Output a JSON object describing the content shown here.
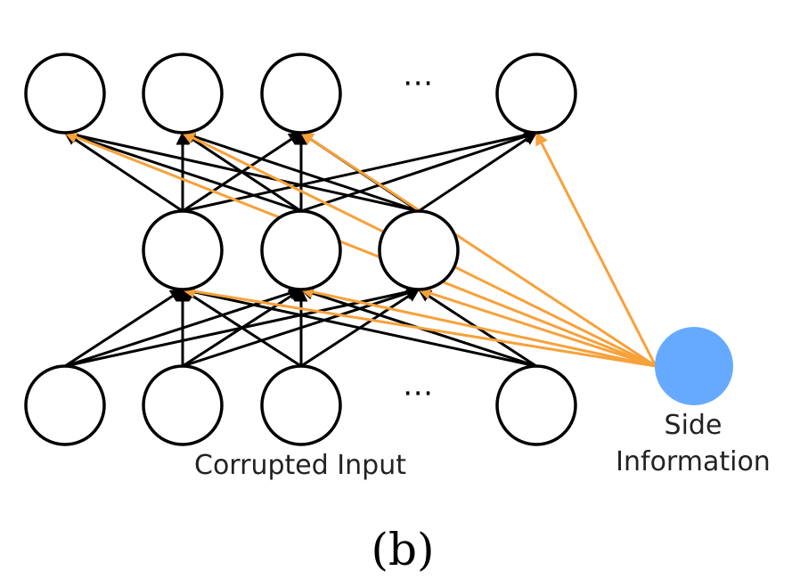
{
  "diagram": {
    "input_label": "Corrupted Input",
    "side_label_line1": "Side",
    "side_label_line2": "Information",
    "ellipsis": "⋯",
    "caption": "(b)"
  },
  "colors": {
    "node_stroke": "#000000",
    "node_fill": "#ffffff",
    "side_node_fill": "#66AAFF",
    "edge_black": "#000000",
    "edge_orange": "#F7A13A"
  },
  "layers": [
    {
      "name": "output",
      "nodes": [
        "o1",
        "o2",
        "o3",
        "o4"
      ]
    },
    {
      "name": "hidden",
      "nodes": [
        "h1",
        "h2",
        "h3"
      ]
    },
    {
      "name": "input",
      "nodes": [
        "i1",
        "i2",
        "i3",
        "i4"
      ]
    }
  ],
  "connections": {
    "input_to_hidden": "all-to-all",
    "hidden_to_output": "all-to-all",
    "side_to_hidden": "all",
    "side_to_output": "all"
  }
}
